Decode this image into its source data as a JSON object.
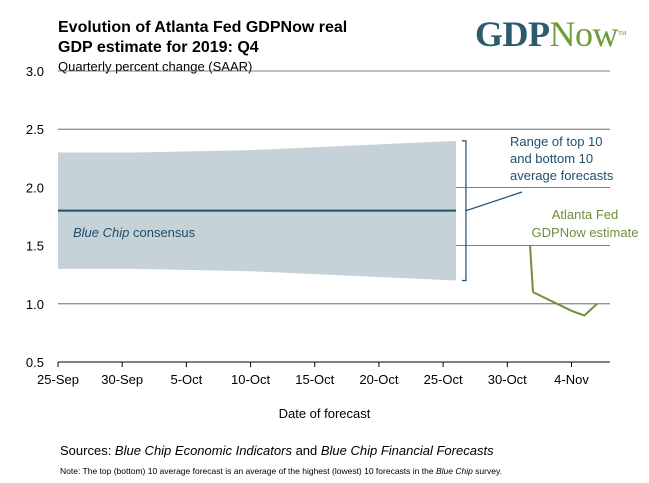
{
  "chart_data": {
    "type": "area",
    "title_line1": "Evolution of Atlanta Fed GDPNow real",
    "title_line2": "GDP estimate for 2019: Q4",
    "subtitle": "Quarterly percent change (SAAR)",
    "xlabel": "Date of forecast",
    "ylabel": "",
    "ylim": [
      0.5,
      3.0
    ],
    "xlim": [
      "2019-09-25",
      "2019-11-07"
    ],
    "yticks": [
      "3.0",
      "2.5",
      "2.0",
      "1.5",
      "1.0",
      "0.5"
    ],
    "xticks": [
      "25-Sep",
      "30-Sep",
      "5-Oct",
      "10-Oct",
      "15-Oct",
      "20-Oct",
      "25-Oct",
      "30-Oct",
      "4-Nov"
    ],
    "grid": true,
    "range_band": {
      "name": "Range of top 10 and bottom 10 average forecasts",
      "x": [
        "2019-09-25",
        "2019-10-01",
        "2019-10-10",
        "2019-10-26"
      ],
      "upper": [
        2.3,
        2.3,
        2.32,
        2.4
      ],
      "lower": [
        1.3,
        1.3,
        1.28,
        1.2
      ],
      "color": "#c5d2d8"
    },
    "consensus": {
      "name": "Blue Chip consensus",
      "x": [
        "2019-09-25",
        "2019-10-26"
      ],
      "y": [
        1.8,
        1.8
      ],
      "color": "#1f4e6b"
    },
    "gdpnow": {
      "name": "Atlanta Fed GDPNow estimate",
      "x": [
        "2019-11-01",
        "2019-11-04",
        "2019-11-05",
        "2019-11-06"
      ],
      "y": [
        1.1,
        0.94,
        0.9,
        1.0
      ],
      "color": "#6f8f3a"
    },
    "annotations": {
      "range_line1": "Range of top 10",
      "range_line2": "and bottom 10",
      "range_line3": "average forecasts",
      "consensus_italic": "Blue Chip",
      "consensus_rest": " consensus",
      "gdpnow_line1": "Atlanta Fed",
      "gdpnow_line2": "GDPNow estimate"
    }
  },
  "logo": {
    "part1": "GDP",
    "part2": "Now",
    "tm": "TM"
  },
  "footer": {
    "sources_label": "Sources:  ",
    "sources_italic1": "Blue Chip Economic Indicators",
    "sources_and": " and ",
    "sources_italic2": "Blue Chip Financial Forecasts",
    "note_pre": "Note:  The top (bottom) 10 average forecast is an average of the highest (lowest) 10 forecasts in the ",
    "note_italic": "Blue Chip",
    "note_post": " survey."
  }
}
